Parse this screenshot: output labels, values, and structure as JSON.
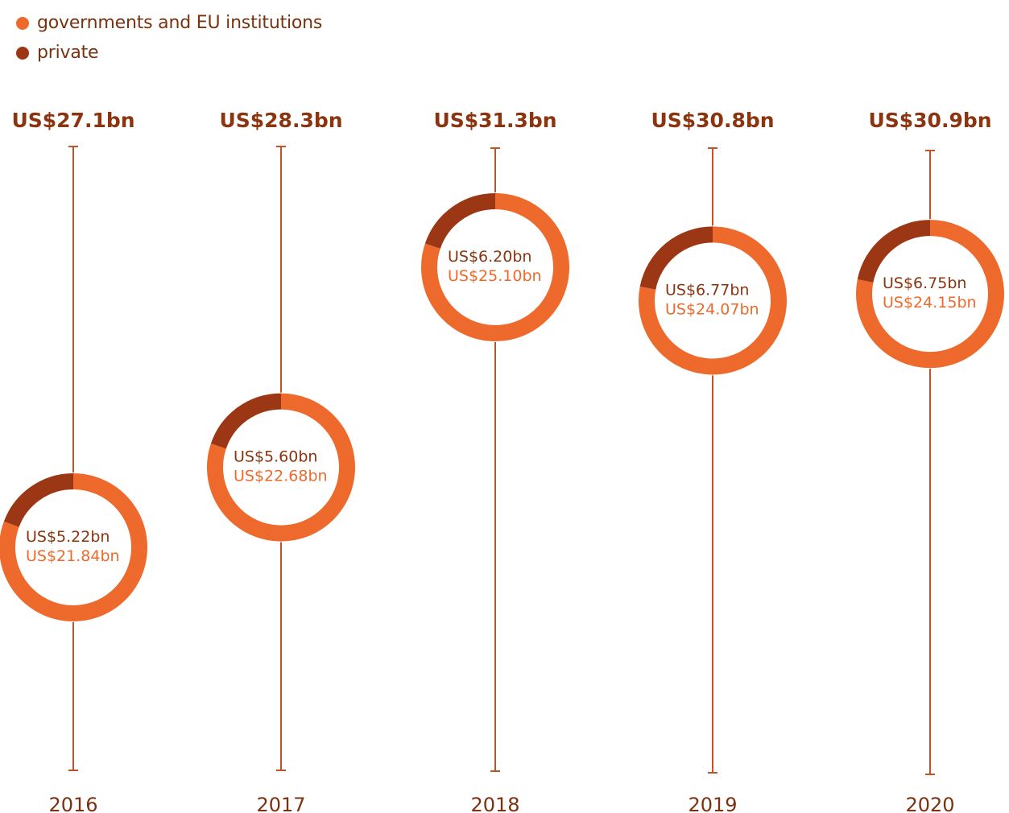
{
  "legend": {
    "items": [
      {
        "label": "governments and EU institutions",
        "color": "#ee6a2c"
      },
      {
        "label": "private",
        "color": "#9c3716"
      }
    ]
  },
  "colors": {
    "government": "#ee6a2c",
    "private": "#9c3716",
    "line": "#c0532a",
    "total_text": "#8a3510",
    "year_text": "#7a3210"
  },
  "chart_data": {
    "type": "pie",
    "variant": "donut-timeline",
    "categories": [
      "2016",
      "2017",
      "2018",
      "2019",
      "2020"
    ],
    "totals": [
      "US$27.1bn",
      "US$28.3bn",
      "US$31.3bn",
      "US$30.8bn",
      "US$30.9bn"
    ],
    "total_values": [
      27.1,
      28.3,
      31.3,
      30.8,
      30.9
    ],
    "series": [
      {
        "name": "governments and EU institutions",
        "values": [
          21.84,
          22.68,
          25.1,
          24.07,
          24.15
        ],
        "labels": [
          "US$21.84bn",
          "US$22.68bn",
          "US$25.10bn",
          "US$24.07bn",
          "US$24.15bn"
        ]
      },
      {
        "name": "private",
        "values": [
          5.22,
          5.6,
          6.2,
          6.77,
          6.75
        ],
        "labels": [
          "US$5.22bn",
          "US$5.60bn",
          "US$6.20bn",
          "US$6.77bn",
          "US$6.75bn"
        ]
      }
    ],
    "y_range": [
      27.1,
      31.3
    ]
  }
}
